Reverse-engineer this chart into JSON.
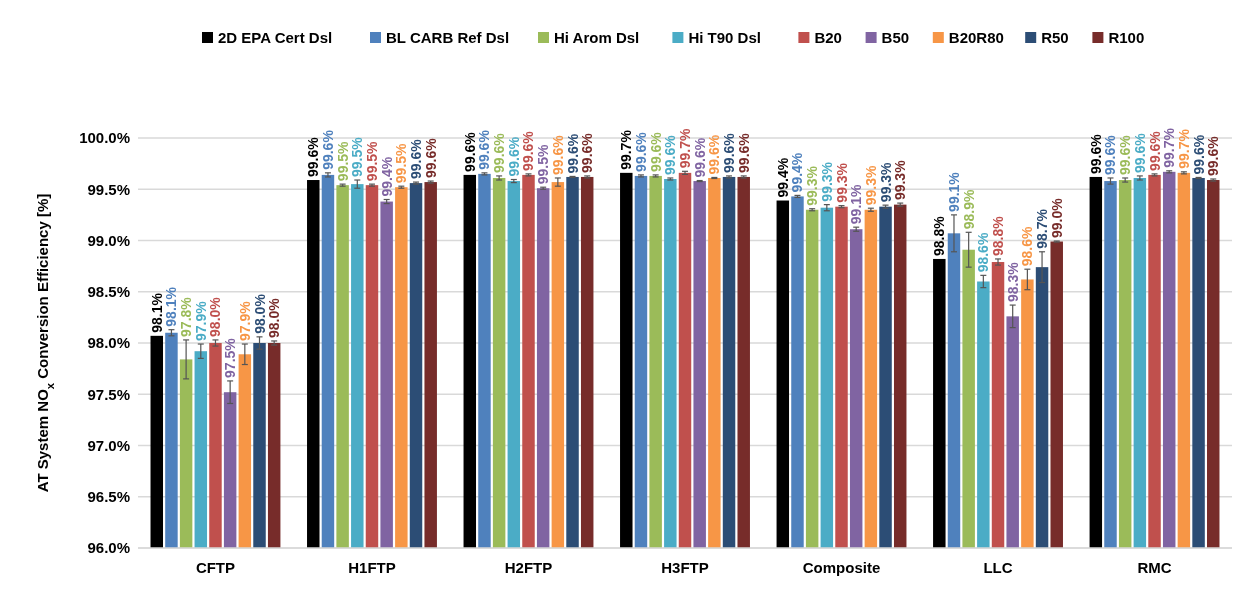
{
  "chart_data": {
    "type": "bar",
    "ylabel": "AT System NO$_{x}$ Conversion Efficiency [%]",
    "categories": [
      "CFTP",
      "H1FTP",
      "H2FTP",
      "H3FTP",
      "Composite",
      "LLC",
      "RMC"
    ],
    "ylim": [
      96,
      100
    ],
    "yticks": [
      {
        "value": 96,
        "label": "96.0%"
      },
      {
        "value": 96.5,
        "label": "96.5%"
      },
      {
        "value": 97,
        "label": "97.0%"
      },
      {
        "value": 97.5,
        "label": "97.5%"
      },
      {
        "value": 98,
        "label": "98.0%"
      },
      {
        "value": 98.5,
        "label": "98.5%"
      },
      {
        "value": 99,
        "label": "99.0%"
      },
      {
        "value": 99.5,
        "label": "99.5%"
      },
      {
        "value": 100,
        "label": "100.0%"
      }
    ],
    "grid": "y",
    "legend": "top",
    "series": [
      {
        "name": "2D EPA Cert Dsl",
        "color": "#000000",
        "values": [
          98.07,
          99.59,
          99.64,
          99.66,
          99.39,
          98.82,
          99.62
        ],
        "value_labels": [
          "98.1%",
          "99.6%",
          "99.6%",
          "99.7%",
          "99.4%",
          "98.8%",
          "99.6%"
        ]
      },
      {
        "name": "BL CARB Ref Dsl",
        "color": "#4f81bd",
        "values": [
          98.1,
          99.64,
          99.65,
          99.63,
          99.43,
          99.07,
          99.58
        ],
        "errors": [
          0.03,
          0.02,
          0.01,
          0.01,
          0.01,
          0.18,
          0.03
        ],
        "value_labels": [
          "98.1%",
          "99.6%",
          "99.6%",
          "99.6%",
          "99.4%",
          "99.1%",
          "99.6%"
        ]
      },
      {
        "name": "Hi Arom Dsl",
        "color": "#9bbb59",
        "values": [
          97.84,
          99.54,
          99.61,
          99.63,
          99.3,
          98.91,
          99.59
        ],
        "errors": [
          0.19,
          0.01,
          0.02,
          0.01,
          0.01,
          0.17,
          0.02
        ],
        "value_labels": [
          "97.8%",
          "99.5%",
          "99.6%",
          "99.6%",
          "99.3%",
          "98.9%",
          "99.6%"
        ]
      },
      {
        "name": "Hi T90 Dsl",
        "color": "#4bacc6",
        "values": [
          97.92,
          99.55,
          99.58,
          99.6,
          99.32,
          98.6,
          99.61
        ],
        "errors": [
          0.07,
          0.04,
          0.015,
          0.01,
          0.03,
          0.06,
          0.02
        ],
        "value_labels": [
          "97.9%",
          "99.5%",
          "99.6%",
          "99.6%",
          "99.3%",
          "98.6%",
          "99.6%"
        ]
      },
      {
        "name": "B20",
        "color": "#c0504d",
        "values": [
          98.0,
          99.54,
          99.64,
          99.66,
          99.33,
          98.79,
          99.64
        ],
        "errors": [
          0.03,
          0.01,
          0.01,
          0.015,
          0.01,
          0.03,
          0.01
        ],
        "value_labels": [
          "98.0%",
          "99.5%",
          "99.6%",
          "99.7%",
          "99.3%",
          "98.8%",
          "99.6%"
        ]
      },
      {
        "name": "B50",
        "color": "#8064a2",
        "values": [
          97.52,
          99.38,
          99.51,
          99.58,
          99.11,
          98.26,
          99.67
        ],
        "errors": [
          0.11,
          0.02,
          0.01,
          0.005,
          0.02,
          0.11,
          0.01
        ],
        "value_labels": [
          "97.5%",
          "99.4%",
          "99.5%",
          "99.6%",
          "99.1%",
          "98.3%",
          "99.7%"
        ]
      },
      {
        "name": "B20R80",
        "color": "#f79646",
        "values": [
          97.89,
          99.52,
          99.57,
          99.61,
          99.3,
          98.62,
          99.66
        ],
        "errors": [
          0.1,
          0.01,
          0.04,
          0.005,
          0.015,
          0.1,
          0.01
        ],
        "value_labels": [
          "97.9%",
          "99.5%",
          "99.6%",
          "99.6%",
          "99.3%",
          "98.6%",
          "99.7%"
        ]
      },
      {
        "name": "R50",
        "color": "#2c4d75",
        "values": [
          98.0,
          99.56,
          99.62,
          99.62,
          99.33,
          98.74,
          99.61
        ],
        "errors": [
          0.06,
          0.01,
          0.005,
          0.01,
          0.015,
          0.15,
          0.005
        ],
        "value_labels": [
          "98.0%",
          "99.6%",
          "99.6%",
          "99.6%",
          "99.3%",
          "98.7%",
          "99.6%"
        ]
      },
      {
        "name": "R100",
        "color": "#772c2a",
        "values": [
          98.0,
          99.57,
          99.62,
          99.62,
          99.35,
          98.99,
          99.59
        ],
        "errors": [
          0.02,
          0.01,
          0.01,
          0.01,
          0.015,
          0.005,
          0.01
        ],
        "value_labels": [
          "98.0%",
          "99.6%",
          "99.6%",
          "99.6%",
          "99.3%",
          "99.0%",
          "99.6%"
        ]
      }
    ]
  }
}
